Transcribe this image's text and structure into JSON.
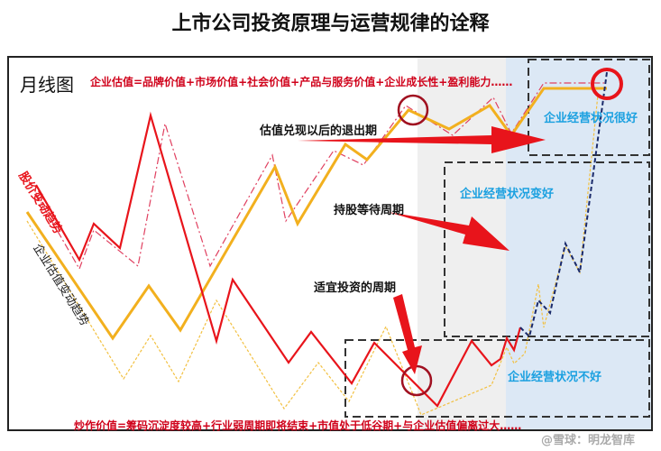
{
  "title": "上市公司投资原理与运营规律的诠释",
  "chart_label": "月线图",
  "valuation_formula": "企业估值=品牌价值+市场价值+社会价值+产品与服务价值+企业成长性+盈利能力……",
  "speculation_formula": "炒作价值=筹码沉淀度较高+行业弱周期即将结束+市值处于低谷期+与企业估值偏离过大……",
  "series_labels": {
    "price": "股价变动趋势",
    "valuation": "企业估值变动趋势"
  },
  "phases": {
    "exit": "估值兑现以后的退出期",
    "hold": "持股等待周期",
    "invest": "适宜投资的周期"
  },
  "states": {
    "very_good": "企业经营状况很好",
    "improving": "企业经营状况变好",
    "bad": "企业经营状况不好"
  },
  "watermark": "@雪球：明龙智库",
  "colors": {
    "price": "#e8141b",
    "valuation": "#f2b01e",
    "state_text": "#1aa0e0",
    "highlight_bg": "#dce8f5",
    "gray_bg": "#efefef"
  }
}
